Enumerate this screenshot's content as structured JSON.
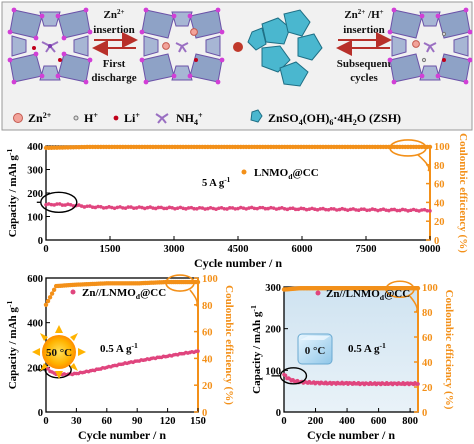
{
  "schematic": {
    "step1_ion": "Zn2+",
    "step1_action": "insertion",
    "step1_reverse": "First",
    "step1_reverse2": "discharge",
    "step2_ion": "Zn2+ /H+",
    "step2_action": "insertion",
    "step2_reverse": "Subsequent",
    "step2_reverse2": "cycles",
    "legend": [
      "Zn2+",
      "H+",
      "Li+",
      "NH4+",
      "ZnSO4(OH)6·4H2O (ZSH)"
    ]
  },
  "colors": {
    "capacity": "#e0457e",
    "coulombic": "#f39019",
    "arrow": "#b8302a",
    "octahedra": "#8ea2c6",
    "octahedra_edge": "#6b52a8",
    "vertex": "#d13fd6",
    "zsh": "#4ab7cf",
    "panel_bg": "#f1f1f1"
  },
  "chart_data": [
    {
      "type": "scatter",
      "label": "5 A g-1",
      "legend": "LNMOd@CC",
      "xlabel": "Cycle number / n",
      "ylabel": "Capacity / mAh g-1",
      "y2label": "Coulombic efficiency (%)",
      "xlim": [
        0,
        9000
      ],
      "ylim": [
        0,
        400
      ],
      "y2lim": [
        0,
        100
      ],
      "xticks": [
        0,
        1500,
        3000,
        4500,
        6000,
        7500,
        9000
      ],
      "yticks": [
        0,
        100,
        200,
        300,
        400
      ],
      "y2ticks": [
        0,
        20,
        40,
        60,
        80,
        100
      ],
      "series": [
        {
          "name": "Capacity",
          "x": [
            0,
            200,
            500,
            1000,
            1500,
            2000,
            3000,
            4000,
            5000,
            6000,
            7000,
            8000,
            9000
          ],
          "y": [
            150,
            152,
            150,
            142,
            138,
            138,
            136,
            134,
            136,
            132,
            130,
            128,
            126
          ]
        },
        {
          "name": "Coulombic efficiency",
          "x": [
            0,
            1000,
            2000,
            3000,
            4000,
            5000,
            6000,
            7000,
            8000,
            9000
          ],
          "y": [
            98,
            99,
            99,
            99,
            99,
            99,
            99,
            99,
            99,
            99
          ]
        }
      ]
    },
    {
      "type": "scatter",
      "label": "0.5 A g-1",
      "temperature": "50 °C",
      "legend": "Zn//LNMOd@CC",
      "xlabel": "Cycle number / n",
      "ylabel": "Capacity / mAh g-1",
      "y2label": "Coulombic efficiency (%)",
      "xlim": [
        0,
        150
      ],
      "ylim": [
        0,
        600
      ],
      "y2lim": [
        0,
        100
      ],
      "xticks": [
        0,
        30,
        60,
        90,
        120,
        150
      ],
      "yticks": [
        0,
        200,
        400,
        600
      ],
      "y2ticks": [
        0,
        20,
        40,
        60,
        80,
        100
      ],
      "series": [
        {
          "name": "Capacity",
          "x": [
            0,
            5,
            10,
            20,
            30,
            45,
            60,
            75,
            90,
            105,
            120,
            135,
            150
          ],
          "y": [
            200,
            180,
            170,
            168,
            172,
            185,
            200,
            215,
            228,
            240,
            250,
            262,
            272
          ]
        },
        {
          "name": "Coulombic efficiency",
          "x": [
            0,
            10,
            30,
            60,
            90,
            120,
            150
          ],
          "y": [
            80,
            94,
            95,
            96,
            96,
            97,
            97
          ]
        }
      ]
    },
    {
      "type": "scatter",
      "label": "0.5 A g-1",
      "temperature": "0 °C",
      "legend": "Zn//LNMOd@CC",
      "xlabel": "Cycle number / n",
      "ylabel": "Capacity / mAh g-1",
      "y2label": "Coulombic efficiency (%)",
      "xlim": [
        0,
        850
      ],
      "ylim": [
        0,
        300
      ],
      "y2lim": [
        0,
        100
      ],
      "xticks": [
        0,
        200,
        400,
        600,
        800
      ],
      "yticks": [
        0,
        100,
        200,
        300
      ],
      "y2ticks": [
        0,
        20,
        40,
        60,
        80,
        100
      ],
      "series": [
        {
          "name": "Capacity",
          "x": [
            0,
            20,
            50,
            100,
            200,
            300,
            400,
            500,
            600,
            700,
            800,
            850
          ],
          "y": [
            90,
            82,
            76,
            72,
            70,
            69,
            69,
            68,
            68,
            68,
            68,
            68
          ]
        },
        {
          "name": "Coulombic efficiency",
          "x": [
            0,
            100,
            200,
            400,
            600,
            800,
            850
          ],
          "y": [
            98,
            99,
            99,
            99,
            99,
            99,
            99
          ]
        }
      ]
    }
  ]
}
